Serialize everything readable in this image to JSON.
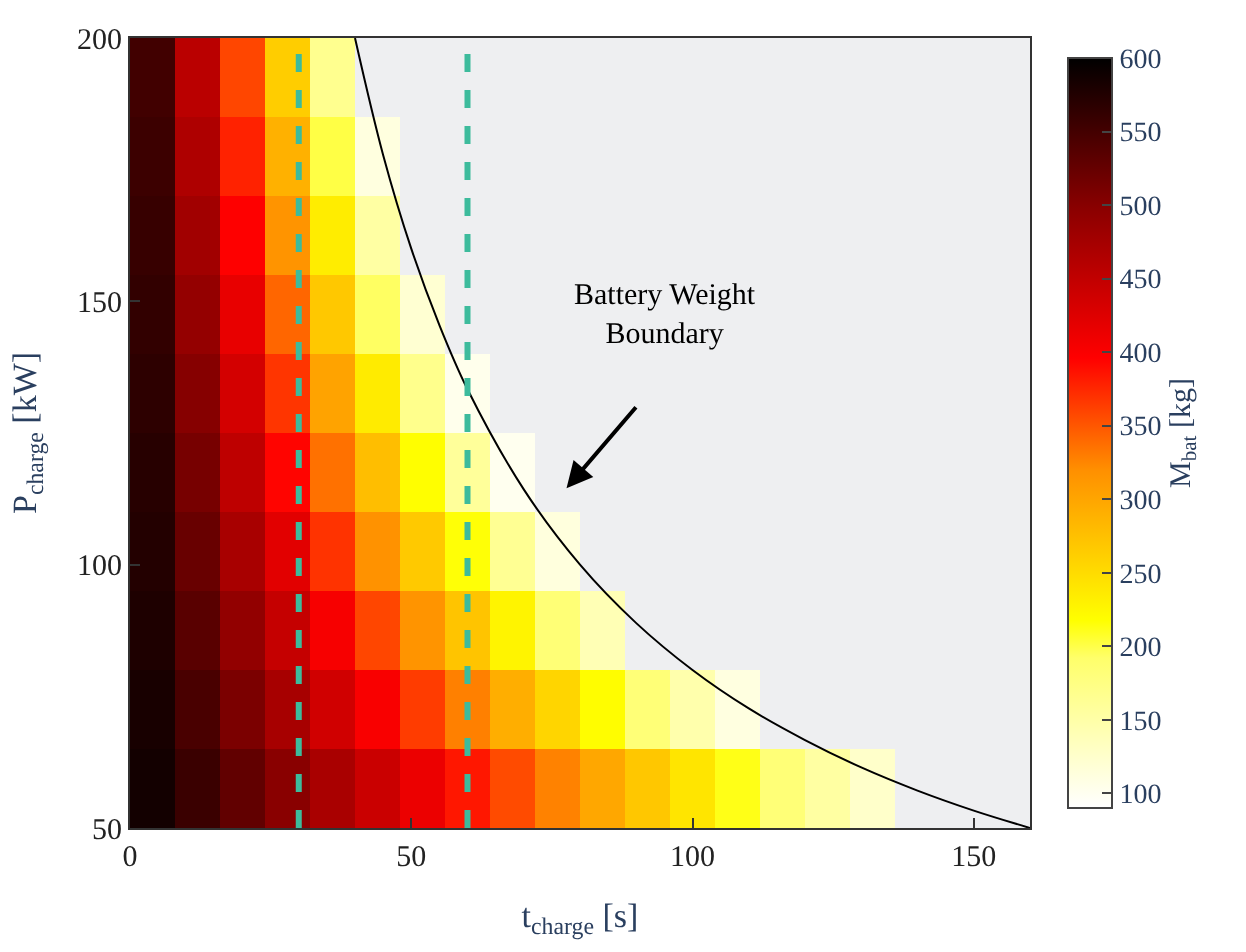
{
  "chart_data": {
    "type": "heatmap",
    "xlabel": "t$_{charge}$ [s]",
    "ylabel": "P$_{charge}$ [kW]",
    "clabel": "M$_{bat}$ [kg]",
    "x": [
      4,
      12,
      20,
      28,
      36,
      44,
      52,
      60,
      68,
      76,
      84,
      92,
      100,
      108,
      116,
      124,
      132,
      140,
      148,
      156
    ],
    "y": [
      192.5,
      177.5,
      162.5,
      147.5,
      132.5,
      117.5,
      102.5,
      87.5,
      72.5,
      57.5
    ],
    "cells": [
      [
        552,
        456,
        359,
        263,
        167,
        null,
        null,
        null,
        null,
        null,
        null,
        null,
        null,
        null,
        null,
        null,
        null,
        null,
        null,
        null
      ],
      [
        556,
        467,
        378,
        289,
        201,
        112,
        null,
        null,
        null,
        null,
        null,
        null,
        null,
        null,
        null,
        null,
        null,
        null,
        null,
        null
      ],
      [
        559,
        478,
        397,
        316,
        234,
        153,
        null,
        null,
        null,
        null,
        null,
        null,
        null,
        null,
        null,
        null,
        null,
        null,
        null,
        null
      ],
      [
        563,
        489,
        416,
        342,
        268,
        194,
        121,
        null,
        null,
        null,
        null,
        null,
        null,
        null,
        null,
        null,
        null,
        null,
        null,
        null
      ],
      [
        567,
        501,
        434,
        368,
        302,
        236,
        169,
        103,
        null,
        null,
        null,
        null,
        null,
        null,
        null,
        null,
        null,
        null,
        null,
        null
      ],
      [
        571,
        512,
        453,
        394,
        336,
        277,
        218,
        159,
        101,
        null,
        null,
        null,
        null,
        null,
        null,
        null,
        null,
        null,
        null,
        null
      ],
      [
        574,
        523,
        472,
        421,
        369,
        318,
        267,
        216,
        164,
        113,
        null,
        null,
        null,
        null,
        null,
        null,
        null,
        null,
        null,
        null
      ],
      [
        578,
        534,
        491,
        447,
        403,
        359,
        316,
        272,
        228,
        184,
        141,
        null,
        null,
        null,
        null,
        null,
        null,
        null,
        null,
        null
      ],
      [
        582,
        546,
        509,
        473,
        437,
        401,
        364,
        328,
        292,
        256,
        219,
        183,
        147,
        111,
        null,
        null,
        null,
        null,
        null,
        null
      ],
      [
        586,
        557,
        528,
        499,
        471,
        442,
        413,
        384,
        356,
        327,
        298,
        269,
        241,
        212,
        183,
        154,
        126,
        null,
        null,
        null
      ]
    ],
    "clim": [
      90,
      600
    ],
    "cticks": [
      100,
      150,
      200,
      250,
      300,
      350,
      400,
      450,
      500,
      550,
      600
    ],
    "xlim": [
      0,
      160
    ],
    "xticks": [
      0,
      50,
      100,
      150
    ],
    "ylim": [
      50,
      200
    ],
    "yticks": [
      50,
      100,
      150,
      200
    ],
    "series": [
      {
        "type": "line",
        "color": "#000000",
        "x": [
          40,
          45,
          50,
          55,
          60,
          70,
          80,
          90,
          100,
          110,
          120,
          130,
          140,
          150,
          160
        ],
        "values": [
          200,
          177.8,
          160,
          145.5,
          133.3,
          114.3,
          100,
          88.9,
          80,
          72.7,
          66.7,
          61.5,
          57.1,
          53.3,
          50
        ]
      }
    ],
    "ref_lines": [
      {
        "axis": "x",
        "value": 30,
        "color": "#3dbb9c",
        "line_style": "dashed"
      },
      {
        "axis": "x",
        "value": 60,
        "color": "#3dbb9c",
        "line_style": "dashed"
      }
    ],
    "annotations": [
      "Battery Weight\nBoundary"
    ],
    "grid": false
  }
}
